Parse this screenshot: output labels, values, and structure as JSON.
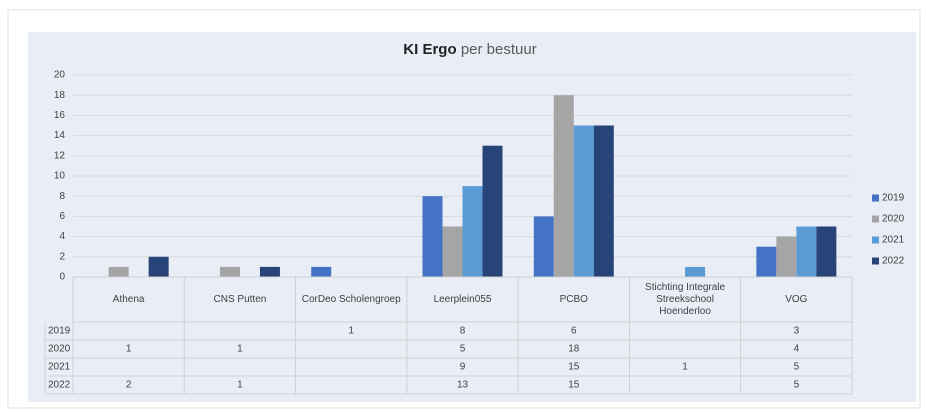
{
  "chart_data": {
    "type": "bar",
    "title": "KI  Ergo",
    "subtitle": "per bestuur",
    "categories": [
      "Athena",
      "CNS Putten",
      "CorDeo Scholengroep",
      "Leerplein055",
      "PCBO",
      "Stichting Integrale Streekschool Hoenderloo",
      "VOG"
    ],
    "series": [
      {
        "name": "2019",
        "color": "#4472c4",
        "values": [
          null,
          null,
          1,
          8,
          6,
          null,
          3
        ]
      },
      {
        "name": "2020",
        "color": "#a5a5a5",
        "values": [
          1,
          1,
          null,
          5,
          18,
          null,
          4
        ]
      },
      {
        "name": "2021",
        "color": "#5b9bd5",
        "values": [
          null,
          null,
          null,
          9,
          15,
          1,
          5
        ]
      },
      {
        "name": "2022",
        "color": "#264478",
        "values": [
          2,
          1,
          null,
          13,
          15,
          null,
          5
        ]
      }
    ],
    "ylim": [
      0,
      20
    ],
    "yticks": [
      0,
      2,
      4,
      6,
      8,
      10,
      12,
      14,
      16,
      18,
      20
    ],
    "grid": true,
    "legend": "right",
    "data_table": true
  }
}
